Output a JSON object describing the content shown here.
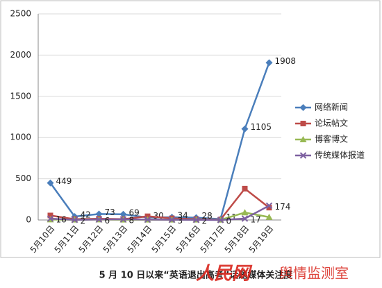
{
  "chart_data": {
    "type": "line",
    "caption": "5 月 10 日以来“英语退出高考”话题媒体关注度",
    "watermark": [
      "人民网",
      "舆情监测室"
    ],
    "categories": [
      "5月10日",
      "5月11日",
      "5月12日",
      "5月13日",
      "5月14日",
      "5月15日",
      "5月16日",
      "5月17日",
      "5月18日",
      "5月19日"
    ],
    "series": [
      {
        "name": "网络新闻",
        "color": "#4a7ebb",
        "marker": "diamond",
        "values": [
          449,
          42,
          73,
          69,
          30,
          34,
          28,
          11,
          1105,
          1908
        ],
        "value_labels": [
          "449",
          "42",
          "73",
          "69",
          "30",
          "34",
          "28",
          "11",
          "1105",
          "1908"
        ]
      },
      {
        "name": "论坛帖文",
        "color": "#be4b48",
        "marker": "square",
        "values": [
          55,
          10,
          15,
          10,
          45,
          20,
          10,
          5,
          380,
          150
        ]
      },
      {
        "name": "博客博文",
        "color": "#98b954",
        "marker": "triangle",
        "values": [
          5,
          3,
          5,
          3,
          3,
          3,
          3,
          2,
          90,
          35
        ]
      },
      {
        "name": "传统媒体报道",
        "color": "#7d60a0",
        "marker": "x",
        "values": [
          16,
          2,
          6,
          8,
          5,
          3,
          2,
          0,
          17,
          174
        ],
        "value_labels": [
          "16",
          "2",
          "6",
          "8",
          null,
          "3",
          "2",
          "0",
          "17",
          "174"
        ]
      }
    ],
    "ylim": [
      0,
      2500
    ],
    "yticks": [
      0,
      500,
      1000,
      1500,
      2000,
      2500
    ],
    "grid": true,
    "legend": "right"
  }
}
